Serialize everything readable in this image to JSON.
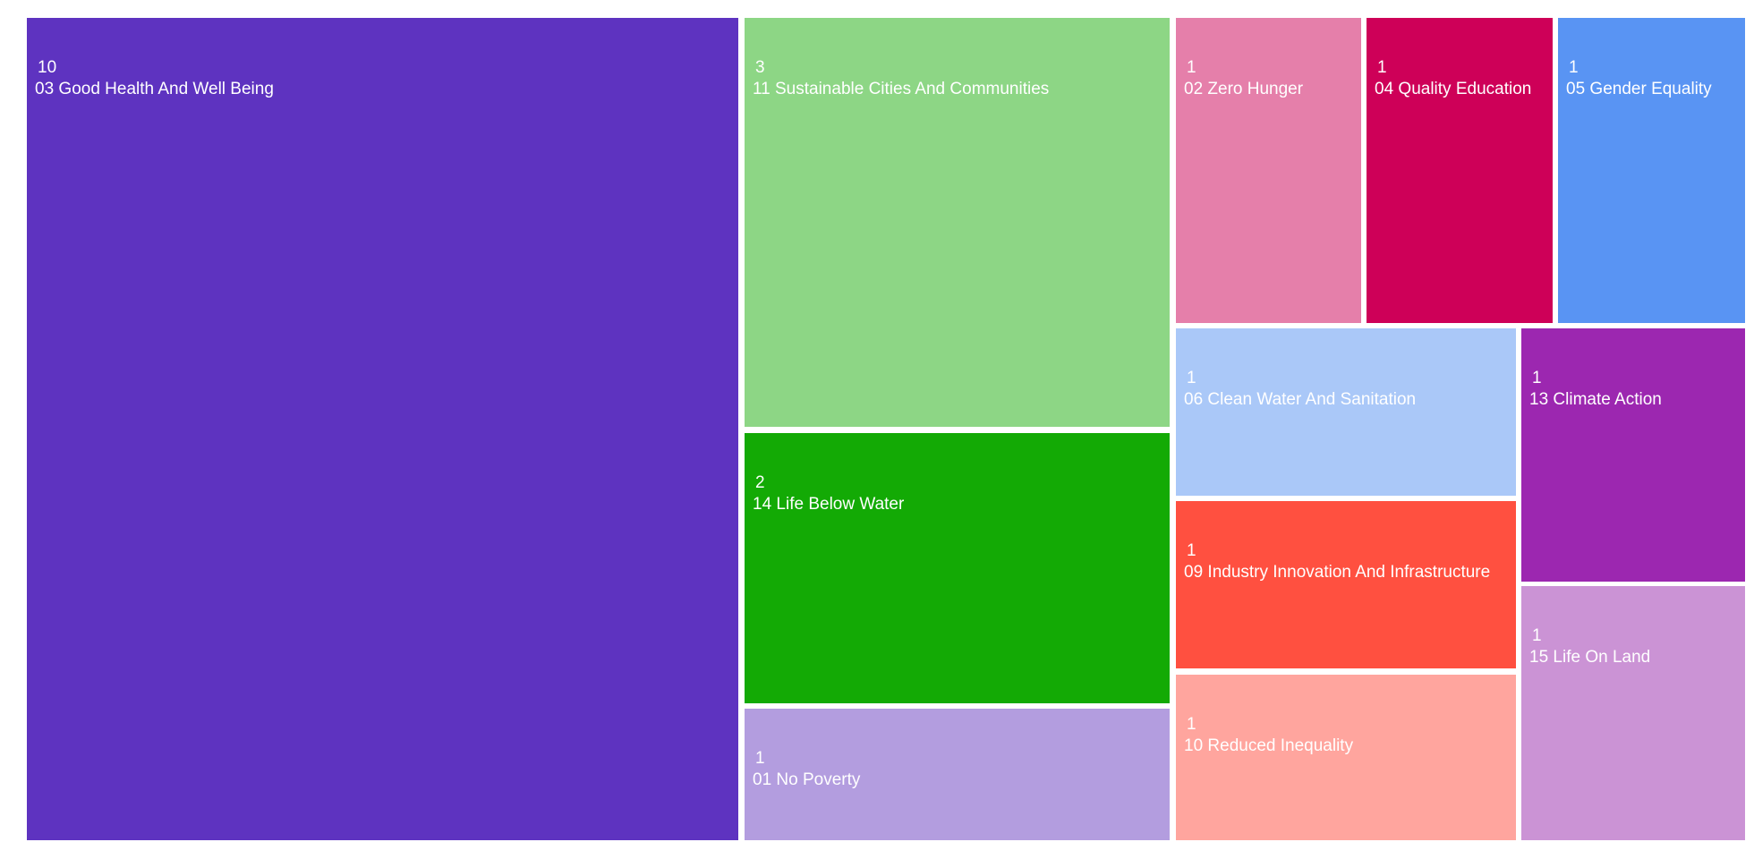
{
  "chart_data": {
    "type": "treemap",
    "title": "",
    "items": [
      {
        "label": "03 Good Health And Well Being",
        "value": 10,
        "color": "#5E33C0"
      },
      {
        "label": "11 Sustainable Cities And Communities",
        "value": 3,
        "color": "#8DD685"
      },
      {
        "label": "14 Life Below Water",
        "value": 2,
        "color": "#13AA05"
      },
      {
        "label": "01 No Poverty",
        "value": 1,
        "color": "#B39DDF"
      },
      {
        "label": "02 Zero Hunger",
        "value": 1,
        "color": "#E57FAA"
      },
      {
        "label": "04 Quality Education",
        "value": 1,
        "color": "#CE0058"
      },
      {
        "label": "05 Gender Equality",
        "value": 1,
        "color": "#5994F3"
      },
      {
        "label": "06 Clean Water And Sanitation",
        "value": 1,
        "color": "#AAC8F8"
      },
      {
        "label": "09 Industry Innovation And Infrastructure",
        "value": 1,
        "color": "#FF5040"
      },
      {
        "label": "10 Reduced Inequality",
        "value": 1,
        "color": "#FFA59E"
      },
      {
        "label": "13 Climate Action",
        "value": 1,
        "color": "#9C27B0"
      },
      {
        "label": "15 Life On Land",
        "value": 1,
        "color": "#CB93D5"
      }
    ]
  }
}
